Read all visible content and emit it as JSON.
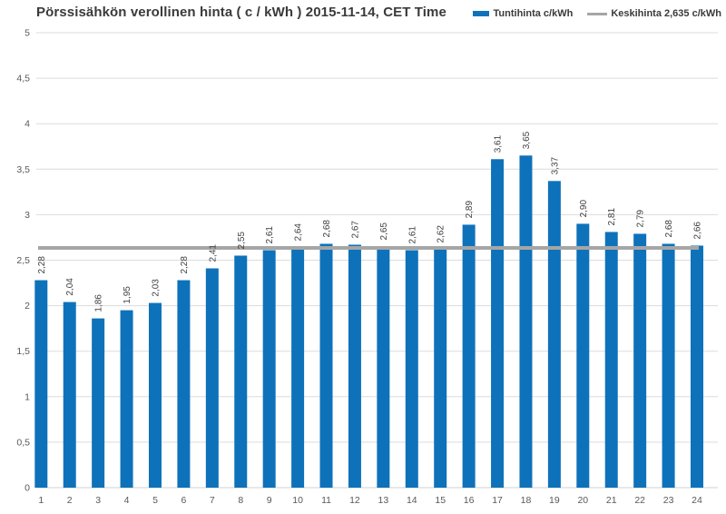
{
  "title": "Pörssisähkön verollinen hinta ( c / kWh ) 2015-11-14, CET Time",
  "legend": {
    "series_label": "Tuntihinta c/kWh",
    "average_label": "Keskihinta 2,635 c/kWh"
  },
  "colors": {
    "bar": "#0e72ba",
    "average_line": "#a6a6a6",
    "grid": "#dcdcdc",
    "axis_line": "#d0d0d0",
    "axis_text": "#595959",
    "value_text": "#404040",
    "title_text": "#3a3a3a"
  },
  "chart_data": {
    "type": "bar",
    "title": "Pörssisähkön verollinen hinta ( c / kWh ) 2015-11-14, CET Time",
    "xlabel": "",
    "ylabel": "",
    "categories": [
      "1",
      "2",
      "3",
      "4",
      "5",
      "6",
      "7",
      "8",
      "9",
      "10",
      "11",
      "12",
      "13",
      "14",
      "15",
      "16",
      "17",
      "18",
      "19",
      "20",
      "21",
      "22",
      "23",
      "24"
    ],
    "values": [
      2.28,
      2.04,
      1.86,
      1.95,
      2.03,
      2.28,
      2.41,
      2.55,
      2.61,
      2.64,
      2.68,
      2.67,
      2.65,
      2.61,
      2.62,
      2.89,
      3.61,
      3.65,
      3.37,
      2.9,
      2.81,
      2.79,
      2.68,
      2.66
    ],
    "value_labels": [
      "2,28",
      "2,04",
      "1,86",
      "1,95",
      "2,03",
      "2,28",
      "2,41",
      "2,55",
      "2,61",
      "2,64",
      "2,68",
      "2,67",
      "2,65",
      "2,61",
      "2,62",
      "2,89",
      "3,61",
      "3,65",
      "3,37",
      "2,90",
      "2,81",
      "2,79",
      "2,68",
      "2,66"
    ],
    "series": [
      {
        "name": "Tuntihinta c/kWh",
        "values": [
          2.28,
          2.04,
          1.86,
          1.95,
          2.03,
          2.28,
          2.41,
          2.55,
          2.61,
          2.64,
          2.68,
          2.67,
          2.65,
          2.61,
          2.62,
          2.89,
          3.61,
          3.65,
          3.37,
          2.9,
          2.81,
          2.79,
          2.68,
          2.66
        ]
      }
    ],
    "average_line": {
      "name": "Keskihinta 2,635 c/kWh",
      "value": 2.635
    },
    "ylim": [
      0,
      5
    ],
    "ytick_step": 0.5,
    "ytick_labels": [
      "0",
      "0,5",
      "1",
      "1,5",
      "2",
      "2,5",
      "3",
      "3,5",
      "4",
      "4,5",
      "5"
    ],
    "grid": true,
    "legend_position": "top-right"
  }
}
